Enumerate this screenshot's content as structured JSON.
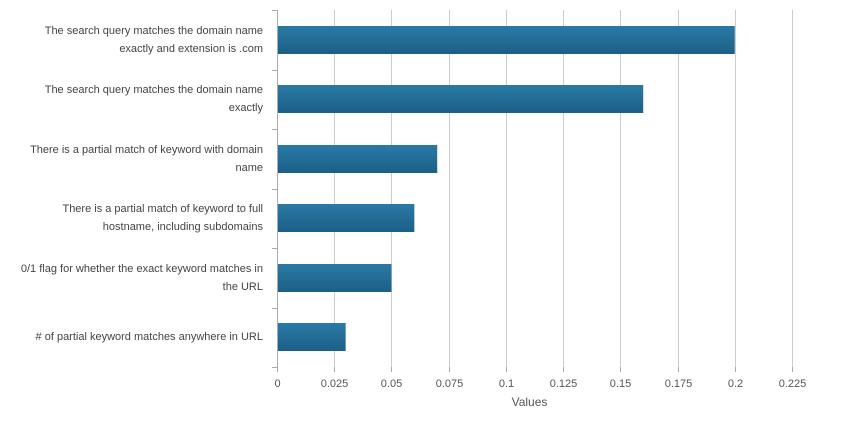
{
  "chart_data": {
    "type": "bar",
    "orientation": "horizontal",
    "categories": [
      "The search query matches the domain name exactly and extension is .com",
      "The search query matches the domain name exactly",
      "There is a partial match of keyword with domain name",
      "There is a partial match of keyword to full hostname, including subdomains",
      "0/1 flag for whether the exact keyword matches in the URL",
      "# of partial keyword matches anywhere in URL"
    ],
    "values": [
      0.2,
      0.16,
      0.07,
      0.06,
      0.05,
      0.03
    ],
    "xlabel": "Values",
    "ylabel": "",
    "xlim": [
      0,
      0.225
    ],
    "xticks": [
      "0",
      "0.025",
      "0.05",
      "0.075",
      "0.1",
      "0.125",
      "0.15",
      "0.175",
      "0.2",
      "0.225"
    ],
    "grid": "vertical",
    "bar_color": "#2a7aa6",
    "bar_color_dark": "#1c5f87"
  }
}
